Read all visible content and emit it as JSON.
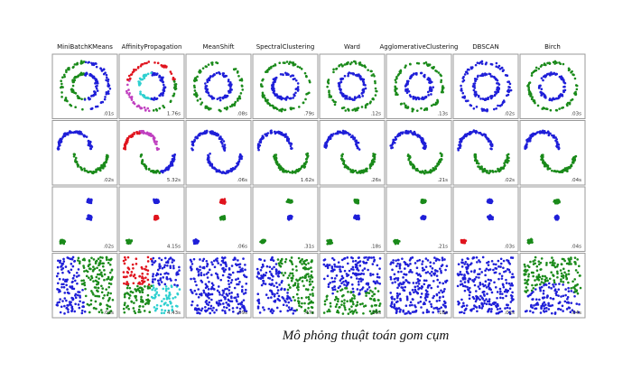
{
  "figure": {
    "columns": [
      "MiniBatchKMeans",
      "AffinityPropagation",
      "MeanShift",
      "SpectralClustering",
      "Ward",
      "AgglomerativeClustering",
      "DBSCAN",
      "Birch"
    ],
    "timings": [
      [
        ".01s",
        "1.76s",
        ".08s",
        ".79s",
        ".12s",
        ".13s",
        ".02s",
        ".03s"
      ],
      [
        ".02s",
        "5.32s",
        ".06s",
        "1.62s",
        ".26s",
        ".21s",
        ".02s",
        ".04s"
      ],
      [
        ".02s",
        "4.15s",
        ".06s",
        ".31s",
        ".18s",
        ".21s",
        ".03s",
        ".04s"
      ],
      [
        ".02s",
        "4.43s",
        ".09s",
        ".47s",
        ".15s",
        ".18s",
        ".02s",
        ".04s"
      ]
    ],
    "caption": "Mô phỏng thuật toán gom cụm"
  }
}
